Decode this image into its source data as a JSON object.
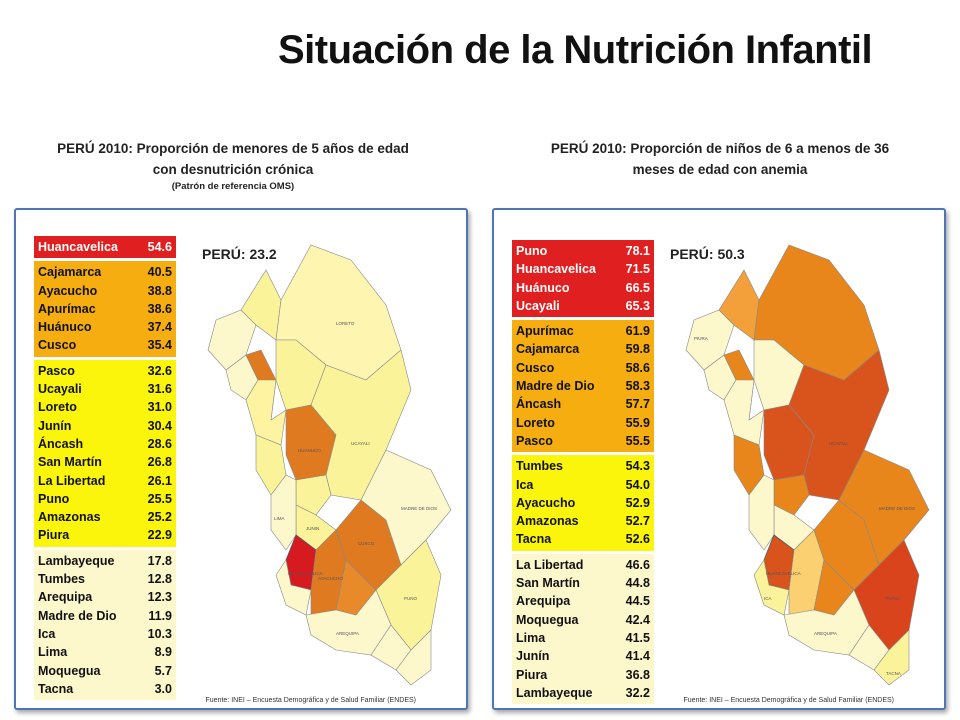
{
  "title": "Situación de la Nutrición Infantil",
  "left": {
    "heading_bold": "PERÚ 2010",
    "heading_rest": ": Proporción de menores de 5 años de edad con desnutrición crónica",
    "heading_note": "(Patrón de referencia OMS)",
    "total": "PERÚ: 23.2",
    "source": "Fuente: INEI – Encuesta Demográfica y de Salud Familiar (ENDES)",
    "groups": [
      {
        "color": "#e02020",
        "rows": [
          {
            "name": "Huancavelica",
            "value": "54.6"
          }
        ]
      },
      {
        "color": "#f5ad10",
        "rows": [
          {
            "name": "Cajamarca",
            "value": "40.5"
          },
          {
            "name": "Ayacucho",
            "value": "38.8"
          },
          {
            "name": "Apurímac",
            "value": "38.6"
          },
          {
            "name": "Huánuco",
            "value": "37.4"
          },
          {
            "name": "Cusco",
            "value": "35.4"
          }
        ]
      },
      {
        "color": "#fbf50c",
        "rows": [
          {
            "name": "Pasco",
            "value": "32.6"
          },
          {
            "name": "Ucayali",
            "value": "31.6"
          },
          {
            "name": "Loreto",
            "value": "31.0"
          },
          {
            "name": "Junín",
            "value": "30.4"
          },
          {
            "name": "Áncash",
            "value": "28.6"
          },
          {
            "name": "San Martín",
            "value": "26.8"
          },
          {
            "name": "La Libertad",
            "value": "26.1"
          },
          {
            "name": "Puno",
            "value": "25.5"
          },
          {
            "name": "Amazonas",
            "value": "25.2"
          },
          {
            "name": "Piura",
            "value": "22.9"
          }
        ]
      },
      {
        "color": "#fdf7cc",
        "rows": [
          {
            "name": "Lambayeque",
            "value": "17.8"
          },
          {
            "name": "Tumbes",
            "value": "12.8"
          },
          {
            "name": "Arequipa",
            "value": "12.3"
          },
          {
            "name": "Madre de Dio",
            "value": "11.9"
          },
          {
            "name": "Ica",
            "value": "10.3"
          },
          {
            "name": "Lima",
            "value": "8.9"
          },
          {
            "name": "Moquegua",
            "value": "5.7"
          },
          {
            "name": "Tacna",
            "value": "3.0"
          }
        ]
      }
    ],
    "map_labels": [
      "LORETO",
      "HUANUCO",
      "UCAYALI",
      "CUSCO",
      "AYACUCHO",
      "HUANCAVELICA",
      "AREQUIPA",
      "MADRE DE DIOS",
      "JUNIN",
      "LIMA",
      "PUNO"
    ]
  },
  "right": {
    "heading_bold": "PERÚ 2010",
    "heading_rest": ": Proporción de niños de 6 a menos de 36 meses de edad con anemia",
    "total": "PERÚ: 50.3",
    "source": "Fuente: INEI – Encuesta Demográfica y de Salud Familiar (ENDES)",
    "groups": [
      {
        "color": "#e02020",
        "rows": [
          {
            "name": "Puno",
            "value": "78.1"
          },
          {
            "name": "Huancavelica",
            "value": "71.5"
          },
          {
            "name": "Huánuco",
            "value": "66.5"
          },
          {
            "name": "Ucayali",
            "value": "65.3"
          }
        ]
      },
      {
        "color": "#f5ad10",
        "rows": [
          {
            "name": "Apurímac",
            "value": "61.9"
          },
          {
            "name": "Cajamarca",
            "value": "59.8"
          },
          {
            "name": "Cusco",
            "value": "58.6"
          },
          {
            "name": "Madre de Dio",
            "value": "58.3"
          },
          {
            "name": "Áncash",
            "value": "57.7"
          },
          {
            "name": "Loreto",
            "value": "55.9"
          },
          {
            "name": "Pasco",
            "value": "55.5"
          }
        ]
      },
      {
        "color": "#fbf50c",
        "rows": [
          {
            "name": "Tumbes",
            "value": "54.3"
          },
          {
            "name": "Ica",
            "value": "54.0"
          },
          {
            "name": "Ayacucho",
            "value": "52.9"
          },
          {
            "name": "Amazonas",
            "value": "52.7"
          },
          {
            "name": "Tacna",
            "value": "52.6"
          }
        ]
      },
      {
        "color": "#fdf7cc",
        "rows": [
          {
            "name": "La Libertad",
            "value": "46.6"
          },
          {
            "name": "San Martín",
            "value": "44.8"
          },
          {
            "name": "Arequipa",
            "value": "44.5"
          },
          {
            "name": "Moquegua",
            "value": "42.4"
          },
          {
            "name": "Lima",
            "value": "41.5"
          },
          {
            "name": "Junín",
            "value": "41.4"
          },
          {
            "name": "Piura",
            "value": "36.8"
          },
          {
            "name": "Lambayeque",
            "value": "32.2"
          }
        ]
      }
    ],
    "map_labels": [
      "UCAYALI",
      "MADRE DE DIOS",
      "PUNO",
      "HUANCAVELICA",
      "AREQUIPA",
      "ICA",
      "TACNA",
      "PIURA"
    ]
  },
  "colors": {
    "red": "#e02020",
    "orange": "#f5ad10",
    "yellow": "#fbf50c",
    "cream": "#fdf7cc",
    "border": "#4f75b7"
  }
}
